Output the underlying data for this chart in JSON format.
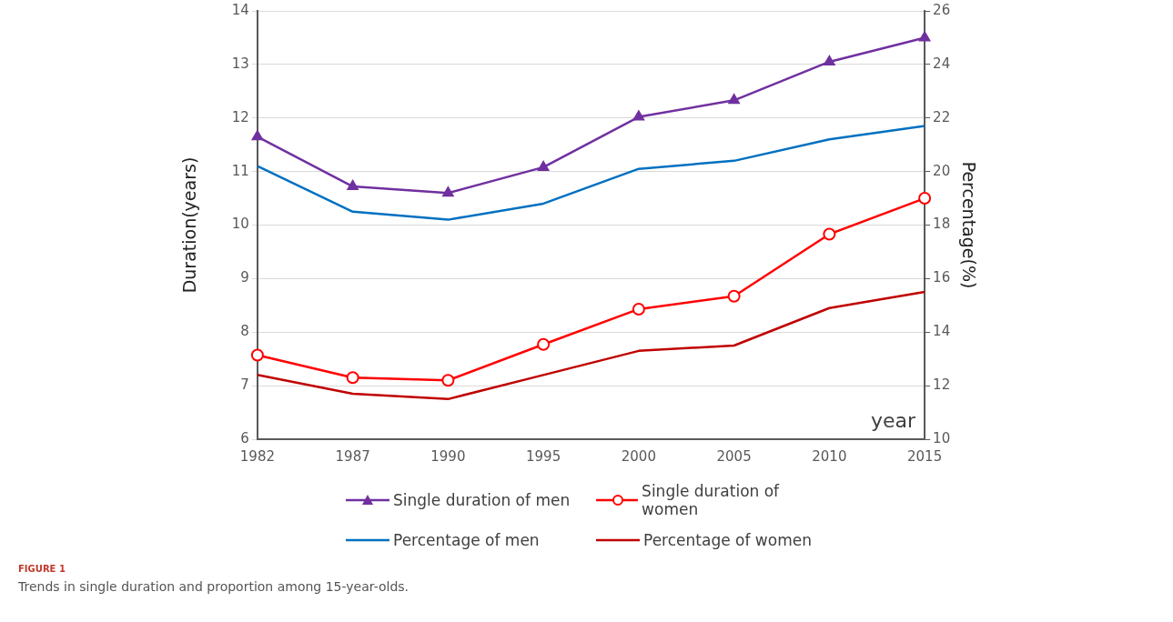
{
  "chart_data": {
    "type": "line",
    "categories": [
      "1982",
      "1987",
      "1990",
      "1995",
      "2000",
      "2005",
      "2010",
      "2015"
    ],
    "xlabel": "year",
    "ylabel": "Duration(years)",
    "y2label": "Percentage(%)",
    "ylim": [
      6,
      14
    ],
    "yticks": [
      6,
      7,
      8,
      9,
      10,
      11,
      12,
      13,
      14
    ],
    "y2lim": [
      10,
      26
    ],
    "y2ticks": [
      10,
      12,
      14,
      16,
      18,
      20,
      22,
      24,
      26
    ],
    "grid": "y",
    "legend": "bottom",
    "line_style": "solid",
    "series": [
      {
        "name": "Single duration of men",
        "color": "#7030a0",
        "marker": "triangle",
        "values": [
          11.65,
          10.72,
          10.6,
          11.08,
          12.02,
          12.33,
          13.05,
          13.5
        ]
      },
      {
        "name": "Single duration of women",
        "color": "#ff0000",
        "marker": "circle",
        "values": [
          7.57,
          7.15,
          7.1,
          7.77,
          8.43,
          8.67,
          9.83,
          10.5
        ]
      },
      {
        "name": "Percentage of men",
        "color": "#0070c0",
        "marker": "none",
        "axis": "y2",
        "values": [
          20.2,
          18.5,
          18.2,
          18.8,
          20.1,
          20.4,
          21.2,
          21.7
        ]
      },
      {
        "name": "Percentage of women",
        "color": "#c00000",
        "marker": "none",
        "axis": "y2",
        "values": [
          12.4,
          11.7,
          11.5,
          12.4,
          13.3,
          13.5,
          14.9,
          15.5
        ]
      }
    ],
    "annotations": [
      "FIGURE 1",
      "Trends in single duration and proportion among 15-year-olds."
    ]
  }
}
